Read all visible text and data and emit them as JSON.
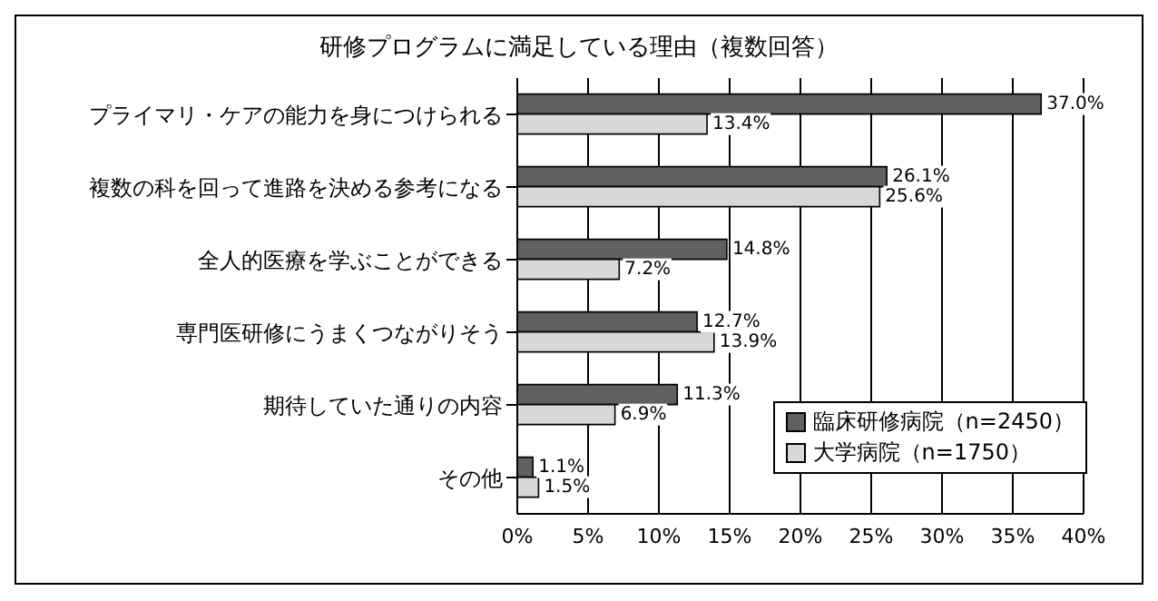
{
  "chart_data": {
    "type": "bar",
    "orientation": "horizontal",
    "title": "研修プログラムに満足している理由（複数回答）",
    "categories": [
      "プライマリ・ケアの能力を身につけられる",
      "複数の科を回って進路を決める参考になる",
      "全人的医療を学ぶことができる",
      "専門医研修にうまくつながりそう",
      "期待していた通りの内容",
      "その他"
    ],
    "series": [
      {
        "name": "臨床研修病院（n=2450）",
        "color": "#606060",
        "values": [
          37.0,
          26.1,
          14.8,
          12.7,
          11.3,
          1.1
        ],
        "value_labels": [
          "37.0%",
          "26.1%",
          "14.8%",
          "12.7%",
          "11.3%",
          "1.1%"
        ]
      },
      {
        "name": "大学病院（n=1750）",
        "color": "#d8d8d8",
        "values": [
          13.4,
          25.6,
          7.2,
          13.9,
          6.9,
          1.5
        ],
        "value_labels": [
          "13.4%",
          "25.6%",
          "7.2%",
          "13.9%",
          "6.9%",
          "1.5%"
        ]
      }
    ],
    "xlim": [
      0,
      40
    ],
    "xticks": [
      {
        "value": 0,
        "label": "0%"
      },
      {
        "value": 5,
        "label": "5%"
      },
      {
        "value": 10,
        "label": "10%"
      },
      {
        "value": 15,
        "label": "15%"
      },
      {
        "value": 20,
        "label": "20%"
      },
      {
        "value": 25,
        "label": "25%"
      },
      {
        "value": 30,
        "label": "30%"
      },
      {
        "value": 35,
        "label": "35%"
      },
      {
        "value": 40,
        "label": "40%"
      }
    ],
    "grid": "x",
    "legend": "bottom right"
  }
}
